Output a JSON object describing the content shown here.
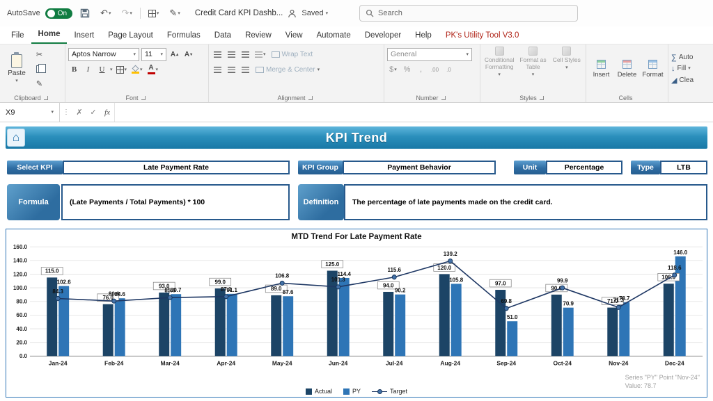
{
  "icons": {
    "undo": "↶",
    "redo": "↷",
    "chevron": "▾",
    "scissors": "✂",
    "painter": "✎",
    "bold": "B",
    "italic": "I",
    "underline": "U",
    "font_color_letter": "A",
    "size_up_letter": "A",
    "up_mark": "▴",
    "down_mark": "▾",
    "dollar": "$",
    "percent": "%",
    "comma": ",",
    "dec_inc": ".00",
    "dec_dec": ".0",
    "sum": "∑",
    "fill_down": "↓",
    "clear_mark": "◢",
    "dots": "⋮",
    "cancel": "✗",
    "enter": "✓",
    "fx": "fx",
    "home": "⌂"
  },
  "titlebar": {
    "autosave_label": "AutoSave",
    "autosave_state": "On",
    "doc_title": "Credit Card KPI Dashb...",
    "saved_label": "Saved",
    "search_placeholder": "Search"
  },
  "menu": {
    "tabs": [
      "File",
      "Home",
      "Insert",
      "Page Layout",
      "Formulas",
      "Data",
      "Review",
      "View",
      "Automate",
      "Developer",
      "Help",
      "PK's Utility Tool V3.0"
    ]
  },
  "ribbon": {
    "clipboard": {
      "paste": "Paste",
      "group": "Clipboard"
    },
    "font": {
      "name": "Aptos Narrow",
      "size": "11",
      "group": "Font"
    },
    "alignment": {
      "wrap": "Wrap Text",
      "merge": "Merge & Center",
      "group": "Alignment"
    },
    "number": {
      "format": "General",
      "group": "Number"
    },
    "styles": {
      "conditional": "Conditional Formatting",
      "format_table": "Format as Table",
      "cell_styles": "Cell Styles",
      "group": "Styles"
    },
    "cells": {
      "insert": "Insert",
      "delete": "Delete",
      "format": "Format",
      "group": "Cells"
    },
    "editing": {
      "auto": "Auto",
      "fill": "Fill",
      "clear": "Clea"
    }
  },
  "formula_bar": {
    "name_box": "X9"
  },
  "sheet": {
    "banner_title": "KPI Trend",
    "select_kpi_label": "Select KPI",
    "select_kpi_value": "Late Payment Rate",
    "kpi_group_label": "KPI Group",
    "kpi_group_value": "Payment Behavior",
    "unit_label": "Unit",
    "unit_value": "Percentage",
    "type_label": "Type",
    "type_value": "LTB",
    "formula_label": "Formula",
    "formula_value": "(Late Payments / Total Payments) * 100",
    "definition_label": "Definition",
    "definition_value": "The percentage of late payments made on the credit card."
  },
  "chart_data": {
    "type": "combo-bar-line",
    "title": "MTD Trend For Late Payment Rate",
    "categories": [
      "Jan-24",
      "Feb-24",
      "Mar-24",
      "Apr-24",
      "May-24",
      "Jun-24",
      "Jul-24",
      "Aug-24",
      "Sep-24",
      "Oct-24",
      "Nov-24",
      "Dec-24"
    ],
    "series": [
      {
        "name": "Actual",
        "type": "bar",
        "color": "#1C4466",
        "label_style": "boxed",
        "values": [
          115.0,
          76.0,
          93.0,
          99.0,
          89.0,
          125.0,
          94.0,
          120.0,
          97.0,
          90.0,
          71.0,
          106.0
        ]
      },
      {
        "name": "PY",
        "type": "bar",
        "color": "#2E75B6",
        "values": [
          102.6,
          84.6,
          90.7,
          91.1,
          87.6,
          114.4,
          90.2,
          105.8,
          51.0,
          70.9,
          78.7,
          146.0
        ]
      },
      {
        "name": "Target",
        "type": "line",
        "color": "#1F3864",
        "marker": "circle",
        "values": [
          84.3,
          80.6,
          85.6,
          87.1,
          106.8,
          101.3,
          115.6,
          139.2,
          69.8,
          99.9,
          71.3,
          118.6
        ]
      }
    ],
    "ylim": [
      0,
      160
    ],
    "ytick_step": 20,
    "grid": true,
    "legend_position": "bottom"
  },
  "tooltip": {
    "line1": "Series \"PY\" Point \"Nov-24\"",
    "line2": "Value: 78.7"
  }
}
